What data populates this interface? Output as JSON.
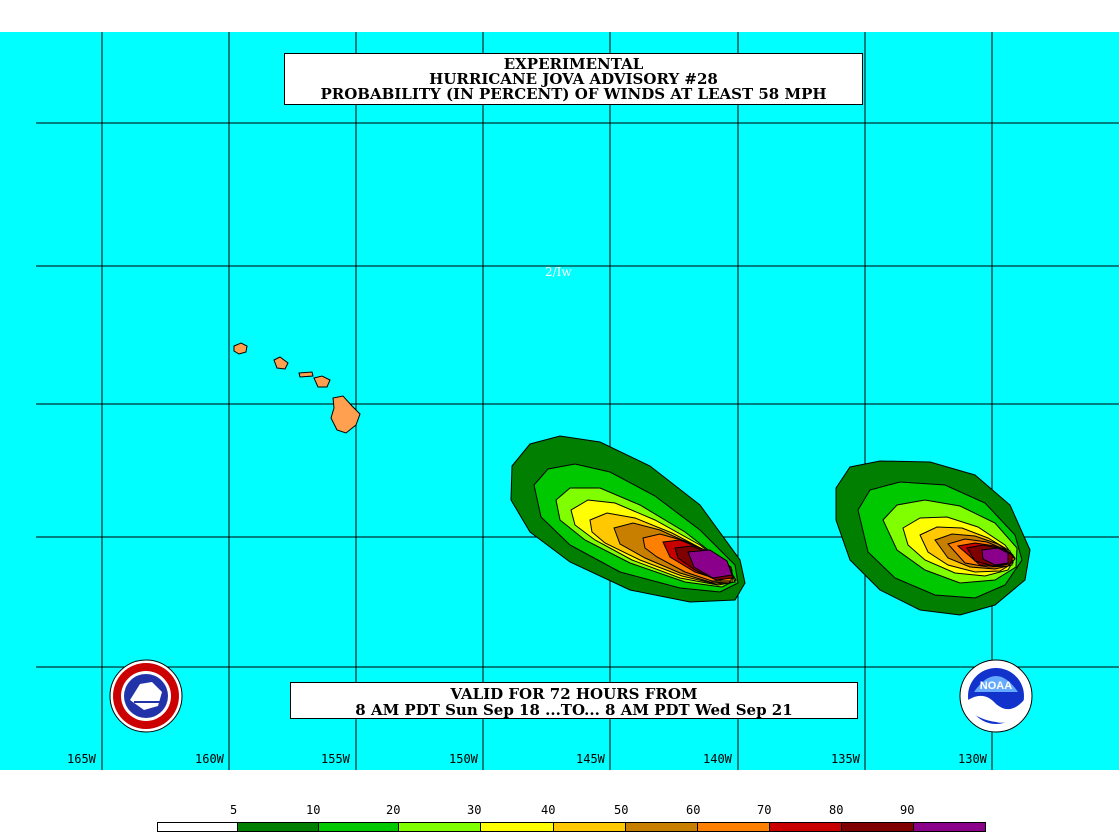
{
  "title": {
    "line1": "EXPERIMENTAL",
    "line2": "HURRICANE JOVA ADVISORY #28",
    "line3": "PROBABILITY (IN PERCENT) OF WINDS AT LEAST 58 MPH"
  },
  "valid": {
    "line1": "VALID FOR 72 HOURS FROM",
    "line2": "8 AM PDT Sun Sep 18 ...TO... 8 AM PDT Wed Sep 21"
  },
  "annotation": "2/Iw",
  "longitudes": [
    "165W",
    "160W",
    "155W",
    "150W",
    "145W",
    "140W",
    "135W",
    "130W"
  ],
  "legend": {
    "labels": [
      "5",
      "10",
      "20",
      "30",
      "40",
      "50",
      "60",
      "70",
      "80",
      "90"
    ],
    "colors": [
      "#ffffff",
      "#007f00",
      "#00c800",
      "#80ff00",
      "#ffff00",
      "#ffc800",
      "#c87f00",
      "#ff7f00",
      "#c80000",
      "#7f0000",
      "#8b008b"
    ]
  },
  "colors": {
    "ocean": "#00ffff",
    "land": "#ff9f50",
    "grid": "#000000"
  },
  "logos": {
    "left": "NWS",
    "right": "NOAA"
  }
}
